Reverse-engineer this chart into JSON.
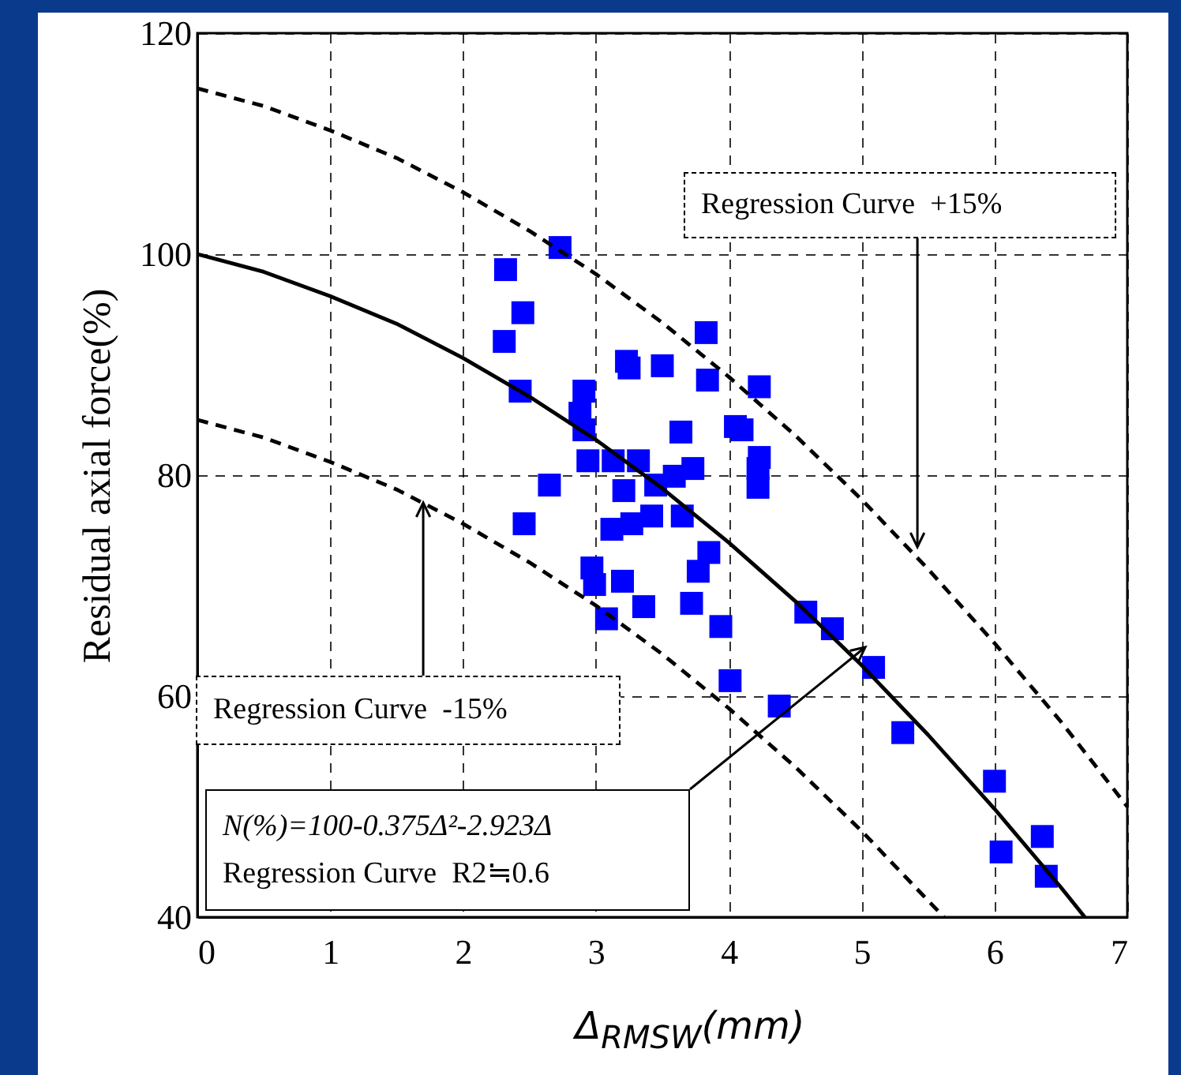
{
  "chart_data": {
    "type": "scatter",
    "xlabel": "Δ$_{RMSW}$(mm)",
    "ylabel": "Residual axial force(%)",
    "xlim": [
      0,
      7
    ],
    "xticks": [
      0,
      1,
      2,
      3,
      4,
      5,
      6,
      7
    ],
    "ylim": [
      40,
      120
    ],
    "yticks": [
      40,
      60,
      80,
      100,
      120
    ],
    "grid": true,
    "series": [
      {
        "color": "#0000ff",
        "marker": "square",
        "x": [
          2.73,
          2.32,
          2.45,
          2.31,
          2.43,
          3.83,
          3.23,
          3.25,
          3.5,
          3.84,
          4.23,
          2.91,
          2.88,
          2.91,
          3.64,
          4.05,
          4.1,
          4.23,
          4.22,
          4.22,
          2.94,
          3.13,
          3.32,
          3.21,
          3.45,
          3.59,
          3.73,
          2.65,
          2.46,
          3.12,
          3.27,
          3.42,
          3.65,
          3.85,
          3.77,
          2.97,
          2.99,
          3.2,
          3.36,
          3.08,
          3.72,
          3.94,
          4.01,
          4.38,
          4.58,
          4.78,
          5.09,
          5.31,
          6.0,
          6.36,
          6.05,
          6.39
        ],
        "values": [
          100.6,
          98.6,
          94.7,
          92.1,
          87.6,
          92.9,
          90.3,
          89.7,
          89.9,
          88.6,
          88.0,
          87.6,
          85.6,
          84.1,
          83.9,
          84.4,
          84.1,
          81.6,
          80.6,
          78.9,
          81.3,
          81.3,
          81.3,
          78.6,
          79.1,
          79.9,
          80.6,
          79.1,
          75.6,
          75.1,
          75.6,
          76.3,
          76.3,
          73.0,
          71.3,
          71.6,
          70.1,
          70.4,
          68.1,
          67.0,
          68.4,
          66.3,
          61.4,
          59.1,
          67.6,
          66.1,
          62.6,
          56.7,
          52.3,
          47.3,
          45.9,
          43.7
        ]
      },
      {
        "type": "line",
        "color": "#000000",
        "line_style": "solid",
        "x": [
          0,
          0.5,
          1,
          1.5,
          2,
          2.5,
          3,
          3.5,
          4,
          4.5,
          5,
          5.5,
          6,
          6.5,
          6.68
        ],
        "values": [
          100,
          98.4,
          96.2,
          93.7,
          90.6,
          87.1,
          83.2,
          78.8,
          73.9,
          68.6,
          62.8,
          56.5,
          49.8,
          42.7,
          40
        ]
      },
      {
        "type": "line",
        "color": "#000000",
        "line_style": "dashed",
        "x": [
          0,
          0.5,
          1,
          1.5,
          2,
          2.5,
          3,
          3.5,
          4,
          4.5,
          5,
          5.5,
          6,
          6.5,
          7
        ],
        "values": [
          115,
          113.4,
          111.2,
          108.7,
          105.6,
          102.1,
          98.2,
          93.8,
          88.9,
          83.6,
          77.8,
          71.5,
          64.8,
          57.7,
          50
        ]
      },
      {
        "type": "line",
        "color": "#000000",
        "line_style": "dashed",
        "x": [
          0,
          0.5,
          1,
          1.5,
          2,
          2.5,
          3,
          3.5,
          4,
          4.5,
          5,
          5.5,
          5.62
        ],
        "values": [
          85,
          83.4,
          81.2,
          78.7,
          75.6,
          72.1,
          68.2,
          63.8,
          58.9,
          53.6,
          47.8,
          41.5,
          40
        ]
      }
    ],
    "annotations": [
      {
        "text": "Regression Curve  +15%",
        "x": 5.42,
        "y": 73.5
      },
      {
        "text": "Regression Curve  -15%",
        "x": 1.7,
        "y": 77.5
      },
      "N(%)=100-0.375Δ²-2.923Δ",
      "Regression Curve  R2≒0.6"
    ]
  }
}
